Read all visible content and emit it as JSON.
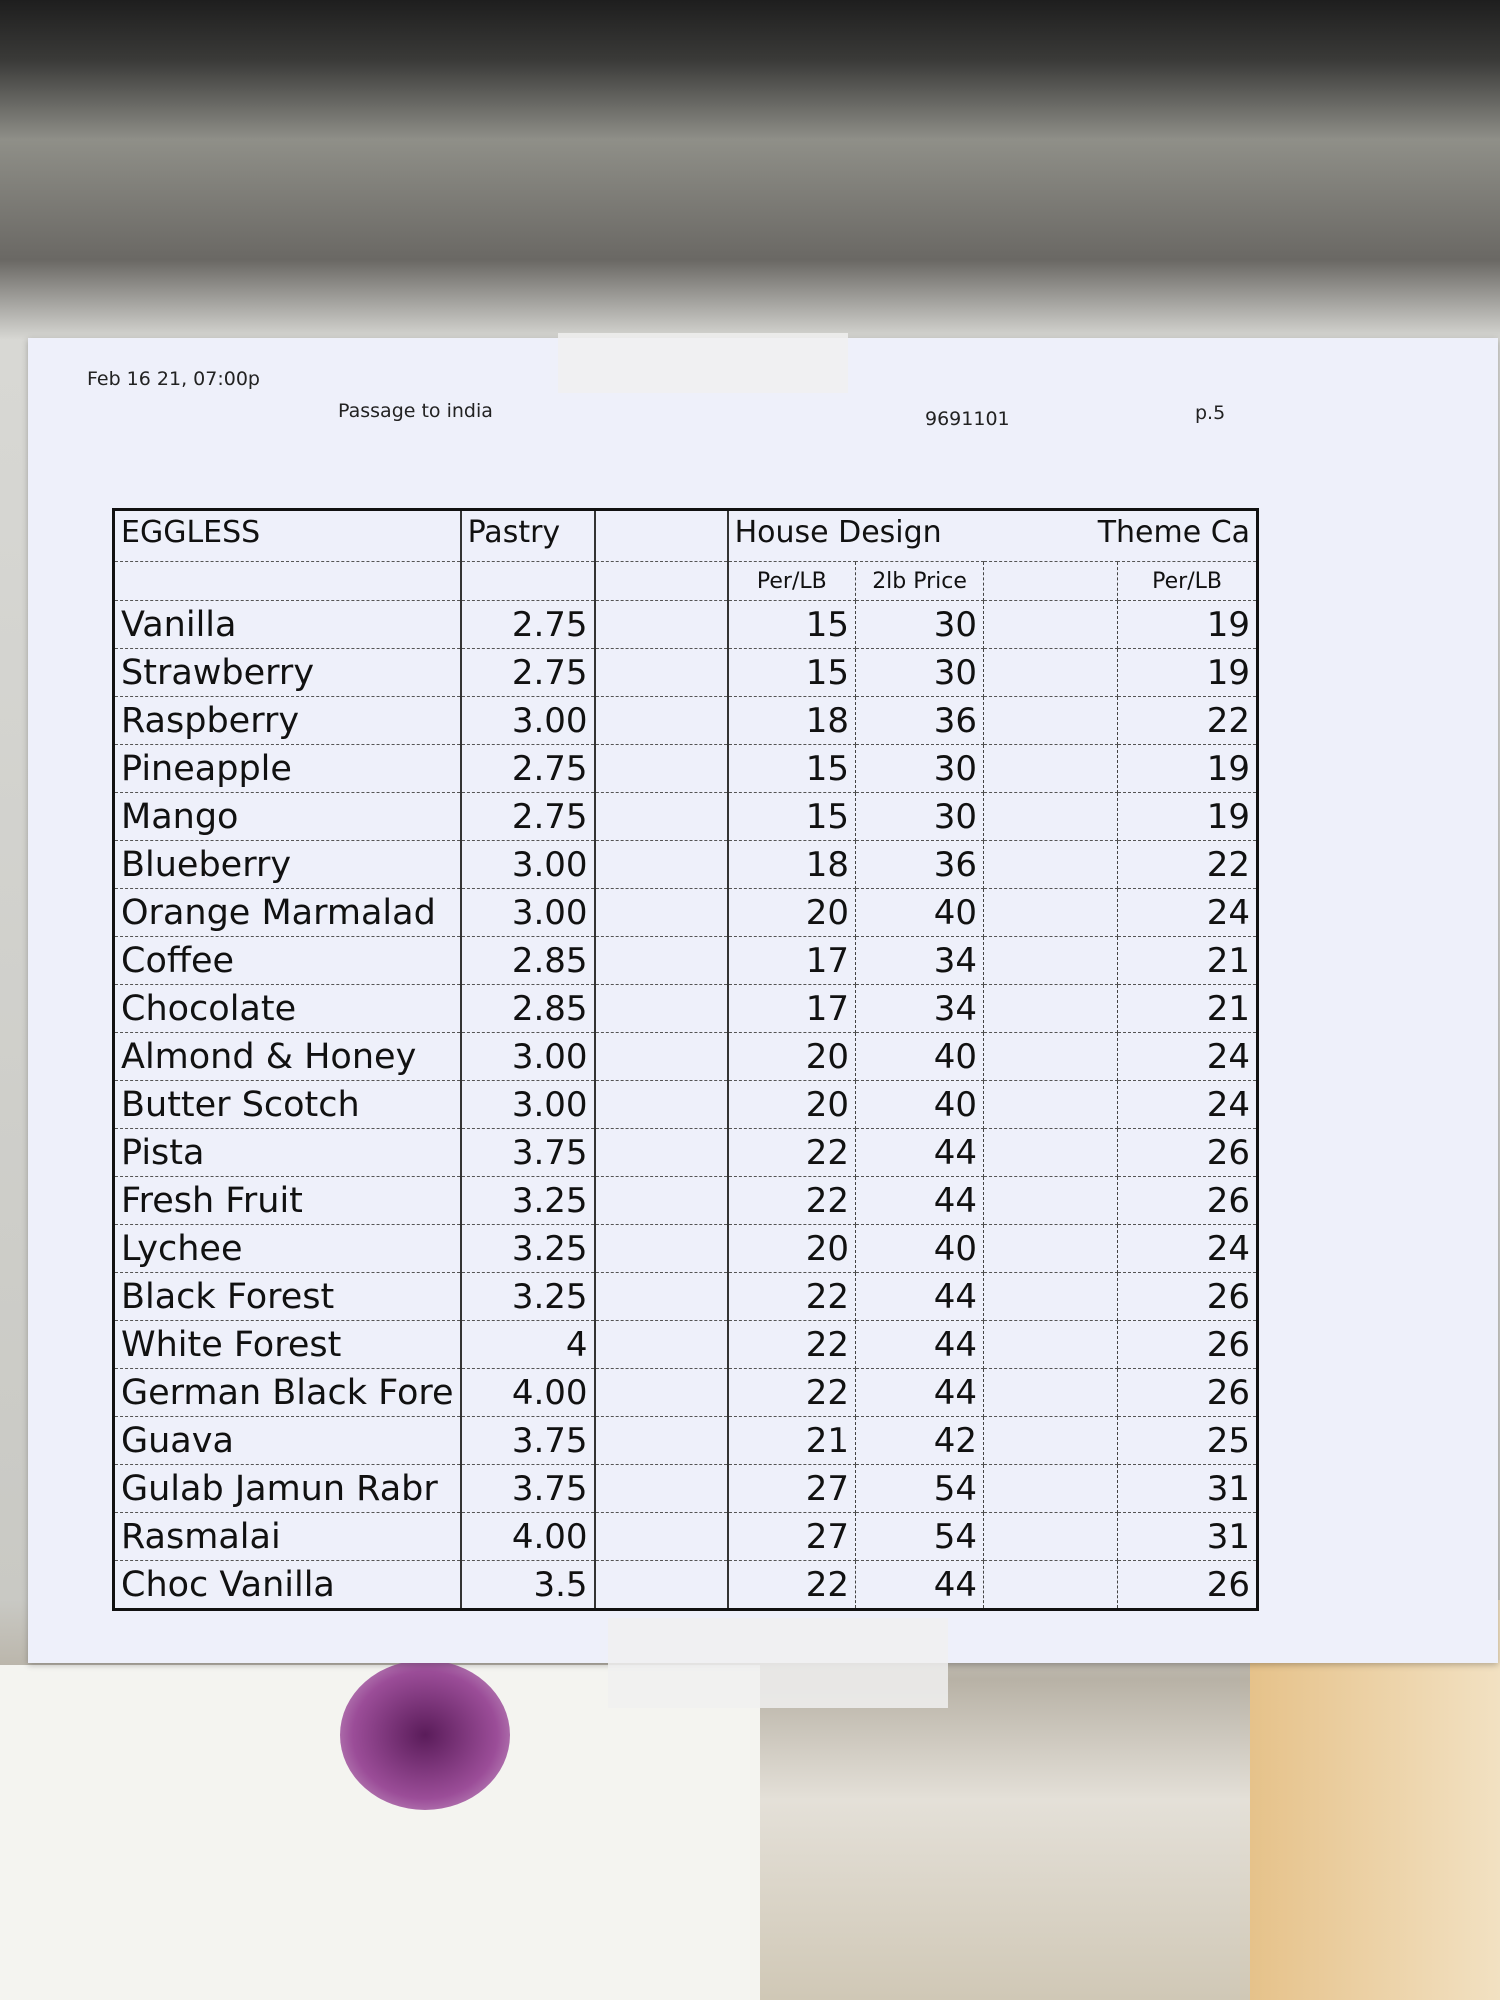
{
  "header": {
    "date": "Feb 16 21, 07:00p",
    "sender": "Passage to india",
    "phone": "9691101",
    "page": "p.5"
  },
  "table": {
    "columns": [
      "EGGLESS",
      "Pastry",
      "House Design",
      "Theme Ca"
    ],
    "subcolumns": [
      "Per/LB",
      "2lb Price",
      "Per/LB"
    ],
    "rows": [
      [
        "Vanilla",
        "2.75",
        "15",
        "30",
        "19"
      ],
      [
        "Strawberry",
        "2.75",
        "15",
        "30",
        "19"
      ],
      [
        "Raspberry",
        "3.00",
        "18",
        "36",
        "22"
      ],
      [
        "Pineapple",
        "2.75",
        "15",
        "30",
        "19"
      ],
      [
        "Mango",
        "2.75",
        "15",
        "30",
        "19"
      ],
      [
        "Blueberry",
        "3.00",
        "18",
        "36",
        "22"
      ],
      [
        "Orange Marmalad",
        "3.00",
        "20",
        "40",
        "24"
      ],
      [
        "Coffee",
        "2.85",
        "17",
        "34",
        "21"
      ],
      [
        "Chocolate",
        "2.85",
        "17",
        "34",
        "21"
      ],
      [
        "Almond & Honey",
        "3.00",
        "20",
        "40",
        "24"
      ],
      [
        "Butter Scotch",
        "3.00",
        "20",
        "40",
        "24"
      ],
      [
        "Pista",
        "3.75",
        "22",
        "44",
        "26"
      ],
      [
        "Fresh Fruit",
        "3.25",
        "22",
        "44",
        "26"
      ],
      [
        "Lychee",
        "3.25",
        "20",
        "40",
        "24"
      ],
      [
        "Black Forest",
        "3.25",
        "22",
        "44",
        "26"
      ],
      [
        "White Forest",
        "4",
        "22",
        "44",
        "26"
      ],
      [
        "German Black Fore",
        "4.00",
        "22",
        "44",
        "26"
      ],
      [
        "Guava",
        "3.75",
        "21",
        "42",
        "25"
      ],
      [
        "Gulab Jamun Rabr",
        "3.75",
        "27",
        "54",
        "31"
      ],
      [
        "Rasmalai",
        "4.00",
        "27",
        "54",
        "31"
      ],
      [
        "Choc Vanilla",
        "3.5",
        "22",
        "44",
        "26"
      ]
    ]
  }
}
